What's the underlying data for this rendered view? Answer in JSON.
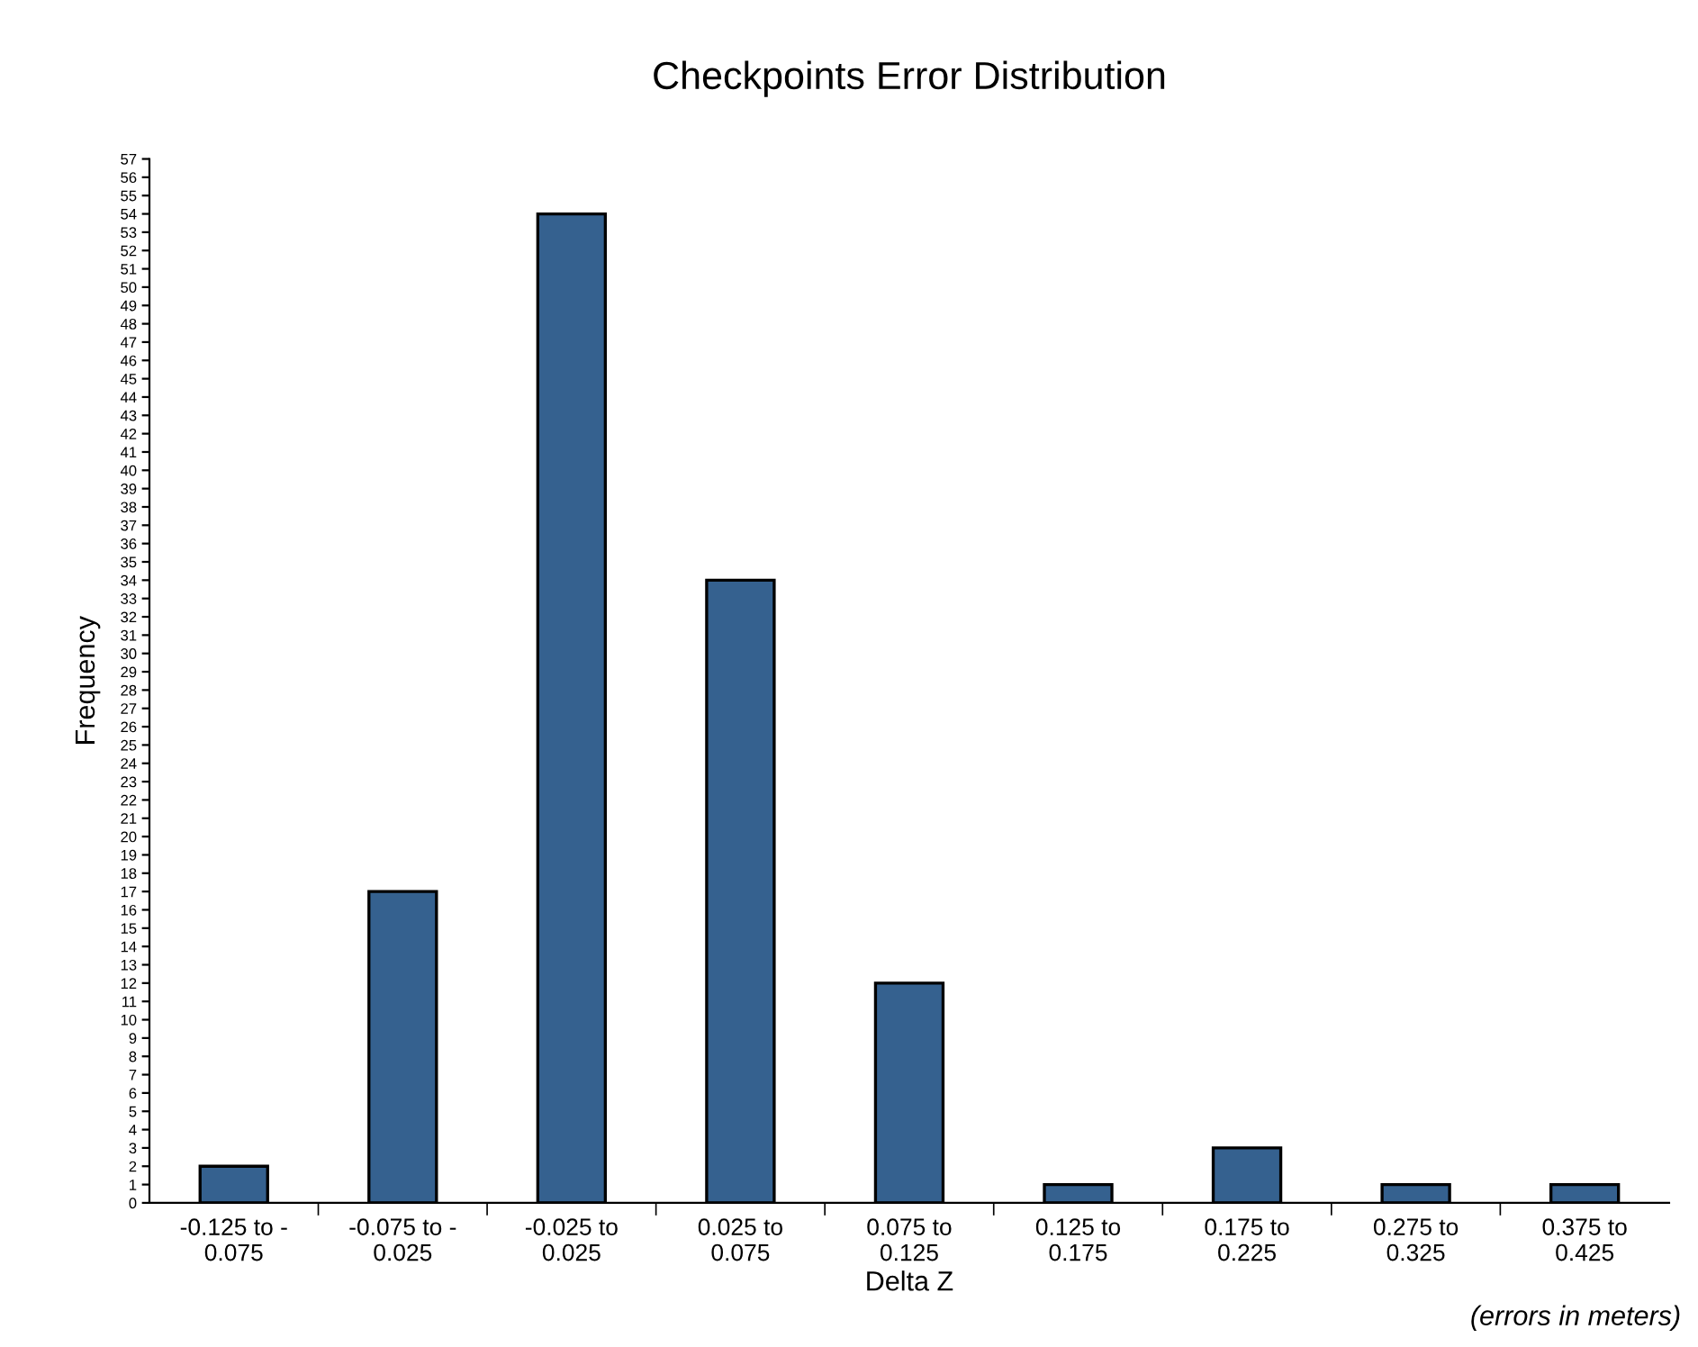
{
  "chart_data": {
    "type": "bar",
    "title": "Checkpoints Error Distribution",
    "xlabel": "Delta Z",
    "ylabel": "Frequency",
    "categories": [
      "-0.125 to -\n0.075",
      "-0.075 to -\n0.025",
      "-0.025 to\n0.025",
      "0.025 to\n0.075",
      "0.075 to\n0.125",
      "0.125 to\n0.175",
      "0.175 to\n0.225",
      "0.275 to\n0.325",
      "0.375 to\n0.425"
    ],
    "values": [
      2,
      17,
      54,
      34,
      12,
      1,
      3,
      1,
      1
    ],
    "color": "#35618f",
    "ylim": [
      0,
      57
    ],
    "yticks": [
      0,
      1,
      2,
      3,
      4,
      5,
      6,
      7,
      8,
      9,
      10,
      11,
      12,
      13,
      14,
      15,
      16,
      17,
      18,
      19,
      20,
      21,
      22,
      23,
      24,
      25,
      26,
      27,
      28,
      29,
      30,
      31,
      32,
      33,
      34,
      35,
      36,
      37,
      38,
      39,
      40,
      41,
      42,
      43,
      44,
      45,
      46,
      47,
      48,
      49,
      50,
      51,
      52,
      53,
      54,
      55,
      56,
      57
    ],
    "grid": false,
    "legend": false,
    "annotations": [
      "(errors in meters)"
    ]
  }
}
